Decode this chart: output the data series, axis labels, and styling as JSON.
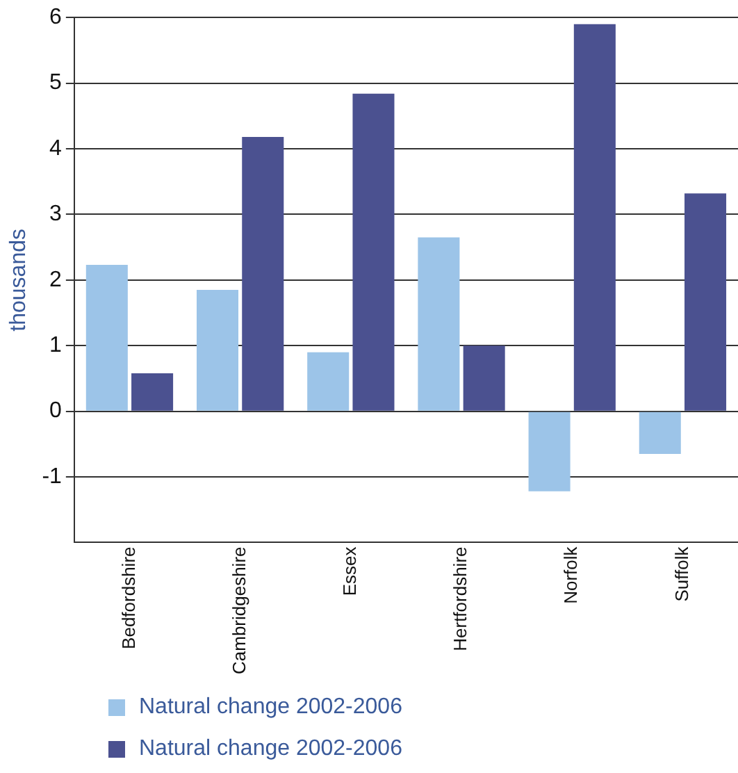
{
  "chart_data": {
    "type": "bar",
    "ylabel": "thousands",
    "categories": [
      "Bedfordshire",
      "Cambridgeshire",
      "Essex",
      "Hertfordshire",
      "Norfolk",
      "Suffolk"
    ],
    "series": [
      {
        "name": "Natural change 2002-2006",
        "color": "#9cc4e8",
        "values": [
          2.23,
          1.85,
          0.9,
          2.65,
          -1.22,
          -0.65
        ]
      },
      {
        "name": "Natural change 2002-2006",
        "color": "#4b5190",
        "values": [
          0.58,
          4.18,
          4.84,
          1.0,
          5.9,
          3.32
        ]
      }
    ],
    "ylim": [
      -2,
      6
    ],
    "yticks": [
      -1,
      0,
      1,
      2,
      3,
      4,
      5,
      6
    ],
    "grid": "y",
    "legend": "bottom"
  }
}
